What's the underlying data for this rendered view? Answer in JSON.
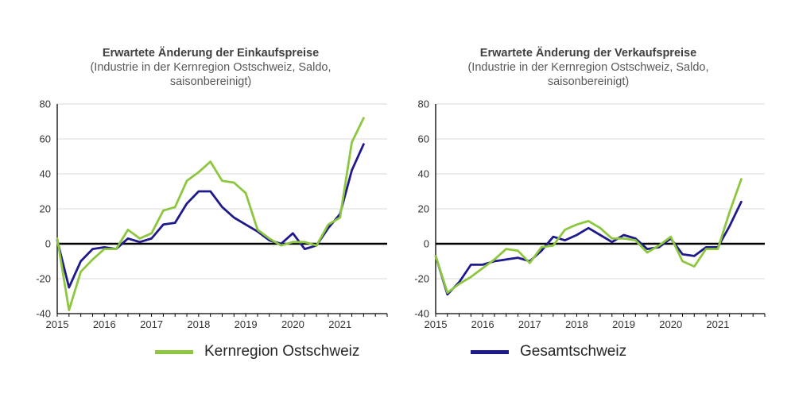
{
  "colors": {
    "kernregion": "#8dc63f",
    "gesamtschweiz": "#1f1a8c"
  },
  "legend": [
    {
      "name": "Kernregion Ostschweiz",
      "color": "#8dc63f"
    },
    {
      "name": "Gesamtschweiz",
      "color": "#1f1a8c"
    }
  ],
  "chart_data": [
    {
      "type": "line",
      "title": "Erwartete Änderung der Einkaufspreise",
      "subtitle": "(Industrie in der Kernregion Ostschweiz, Saldo, saisonbereinigt)",
      "xlim": [
        2015.0,
        2022.0
      ],
      "ylim": [
        -40,
        80
      ],
      "yticks": [
        80,
        60,
        40,
        20,
        0,
        -20,
        -40
      ],
      "xticks": [
        "2015",
        "2016",
        "2017",
        "2018",
        "2019",
        "2020",
        "2021"
      ],
      "series": [
        {
          "name": "Gesamtschweiz",
          "color": "#1f1a8c",
          "x": [
            2015.0,
            2015.25,
            2015.5,
            2015.75,
            2016.0,
            2016.25,
            2016.5,
            2016.75,
            2017.0,
            2017.25,
            2017.5,
            2017.75,
            2018.0,
            2018.25,
            2018.5,
            2018.75,
            2019.0,
            2019.25,
            2019.5,
            2019.75,
            2020.0,
            2020.25,
            2020.5,
            2020.75,
            2021.0,
            2021.25,
            2021.5
          ],
          "y": [
            2,
            -25,
            -10,
            -3,
            -2,
            -3,
            3,
            1,
            3,
            11,
            12,
            23,
            30,
            30,
            21,
            15,
            11,
            7,
            2,
            0,
            6,
            -3,
            -1,
            9,
            17,
            42,
            57
          ]
        },
        {
          "name": "Kernregion Ostschweiz",
          "color": "#8dc63f",
          "x": [
            2015.0,
            2015.25,
            2015.5,
            2015.75,
            2016.0,
            2016.25,
            2016.5,
            2016.75,
            2017.0,
            2017.25,
            2017.5,
            2017.75,
            2018.0,
            2018.25,
            2018.5,
            2018.75,
            2019.0,
            2019.25,
            2019.5,
            2019.75,
            2020.0,
            2020.25,
            2020.5,
            2020.75,
            2021.0,
            2021.25,
            2021.5
          ],
          "y": [
            3,
            -38,
            -16,
            -9,
            -3,
            -3,
            8,
            3,
            6,
            19,
            21,
            36,
            41,
            47,
            36,
            35,
            29,
            8,
            3,
            -1,
            1,
            1,
            -1,
            11,
            15,
            58,
            72
          ]
        }
      ]
    },
    {
      "type": "line",
      "title": "Erwartete Änderung der Verkaufspreise",
      "subtitle": "(Industrie in der Kernregion Ostschweiz, Saldo, saisonbereinigt)",
      "xlim": [
        2015.0,
        2022.0
      ],
      "ylim": [
        -40,
        80
      ],
      "yticks": [
        80,
        60,
        40,
        20,
        0,
        -20,
        -40
      ],
      "xticks": [
        "2015",
        "2016",
        "2017",
        "2018",
        "2019",
        "2020",
        "2021"
      ],
      "series": [
        {
          "name": "Gesamtschweiz",
          "color": "#1f1a8c",
          "x": [
            2015.0,
            2015.25,
            2015.5,
            2015.75,
            2016.0,
            2016.25,
            2016.5,
            2016.75,
            2017.0,
            2017.25,
            2017.5,
            2017.75,
            2018.0,
            2018.25,
            2018.5,
            2018.75,
            2019.0,
            2019.25,
            2019.5,
            2019.75,
            2020.0,
            2020.25,
            2020.5,
            2020.75,
            2021.0,
            2021.25,
            2021.5
          ],
          "y": [
            -7,
            -29,
            -22,
            -12,
            -12,
            -10,
            -9,
            -8,
            -10,
            -4,
            4,
            2,
            5,
            9,
            5,
            1,
            5,
            3,
            -3,
            -2,
            3,
            -6,
            -7,
            -2,
            -2,
            10,
            24
          ]
        },
        {
          "name": "Kernregion Ostschweiz",
          "color": "#8dc63f",
          "x": [
            2015.0,
            2015.25,
            2015.5,
            2015.75,
            2016.0,
            2016.25,
            2016.5,
            2016.75,
            2017.0,
            2017.25,
            2017.5,
            2017.75,
            2018.0,
            2018.25,
            2018.5,
            2018.75,
            2019.0,
            2019.25,
            2019.5,
            2019.75,
            2020.0,
            2020.25,
            2020.5,
            2020.75,
            2021.0,
            2021.25,
            2021.5
          ],
          "y": [
            -7,
            -28,
            -23,
            -19,
            -14,
            -9,
            -3,
            -4,
            -11,
            -2,
            -1,
            8,
            11,
            13,
            9,
            3,
            3,
            2,
            -5,
            -1,
            4,
            -10,
            -13,
            -3,
            -3,
            18,
            37
          ]
        }
      ]
    }
  ]
}
